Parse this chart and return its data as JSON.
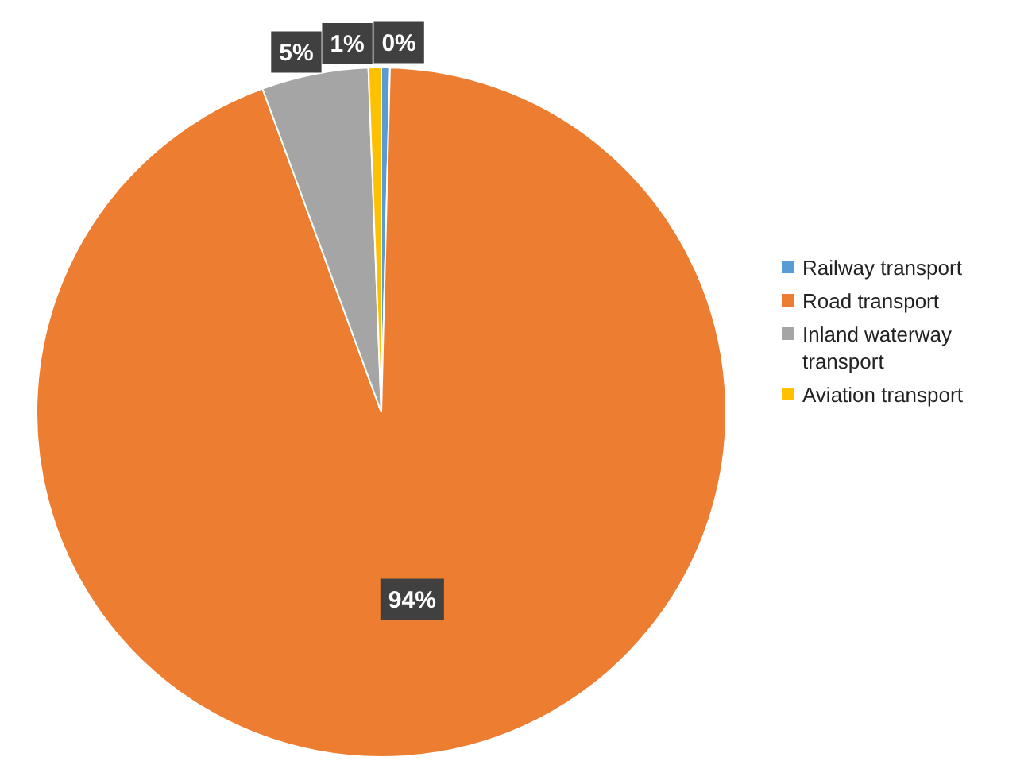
{
  "chart_data": {
    "type": "pie",
    "categories": [
      "Railway transport",
      "Road transport",
      "Inland waterway transport",
      "Aviation transport"
    ],
    "values": [
      0.4,
      94,
      5,
      0.6
    ],
    "value_labels": [
      "0%",
      "94%",
      "5%",
      "1%"
    ],
    "colors": [
      "#5b9bd5",
      "#ed7d31",
      "#a5a5a5",
      "#ffc000"
    ],
    "legend": "right"
  }
}
